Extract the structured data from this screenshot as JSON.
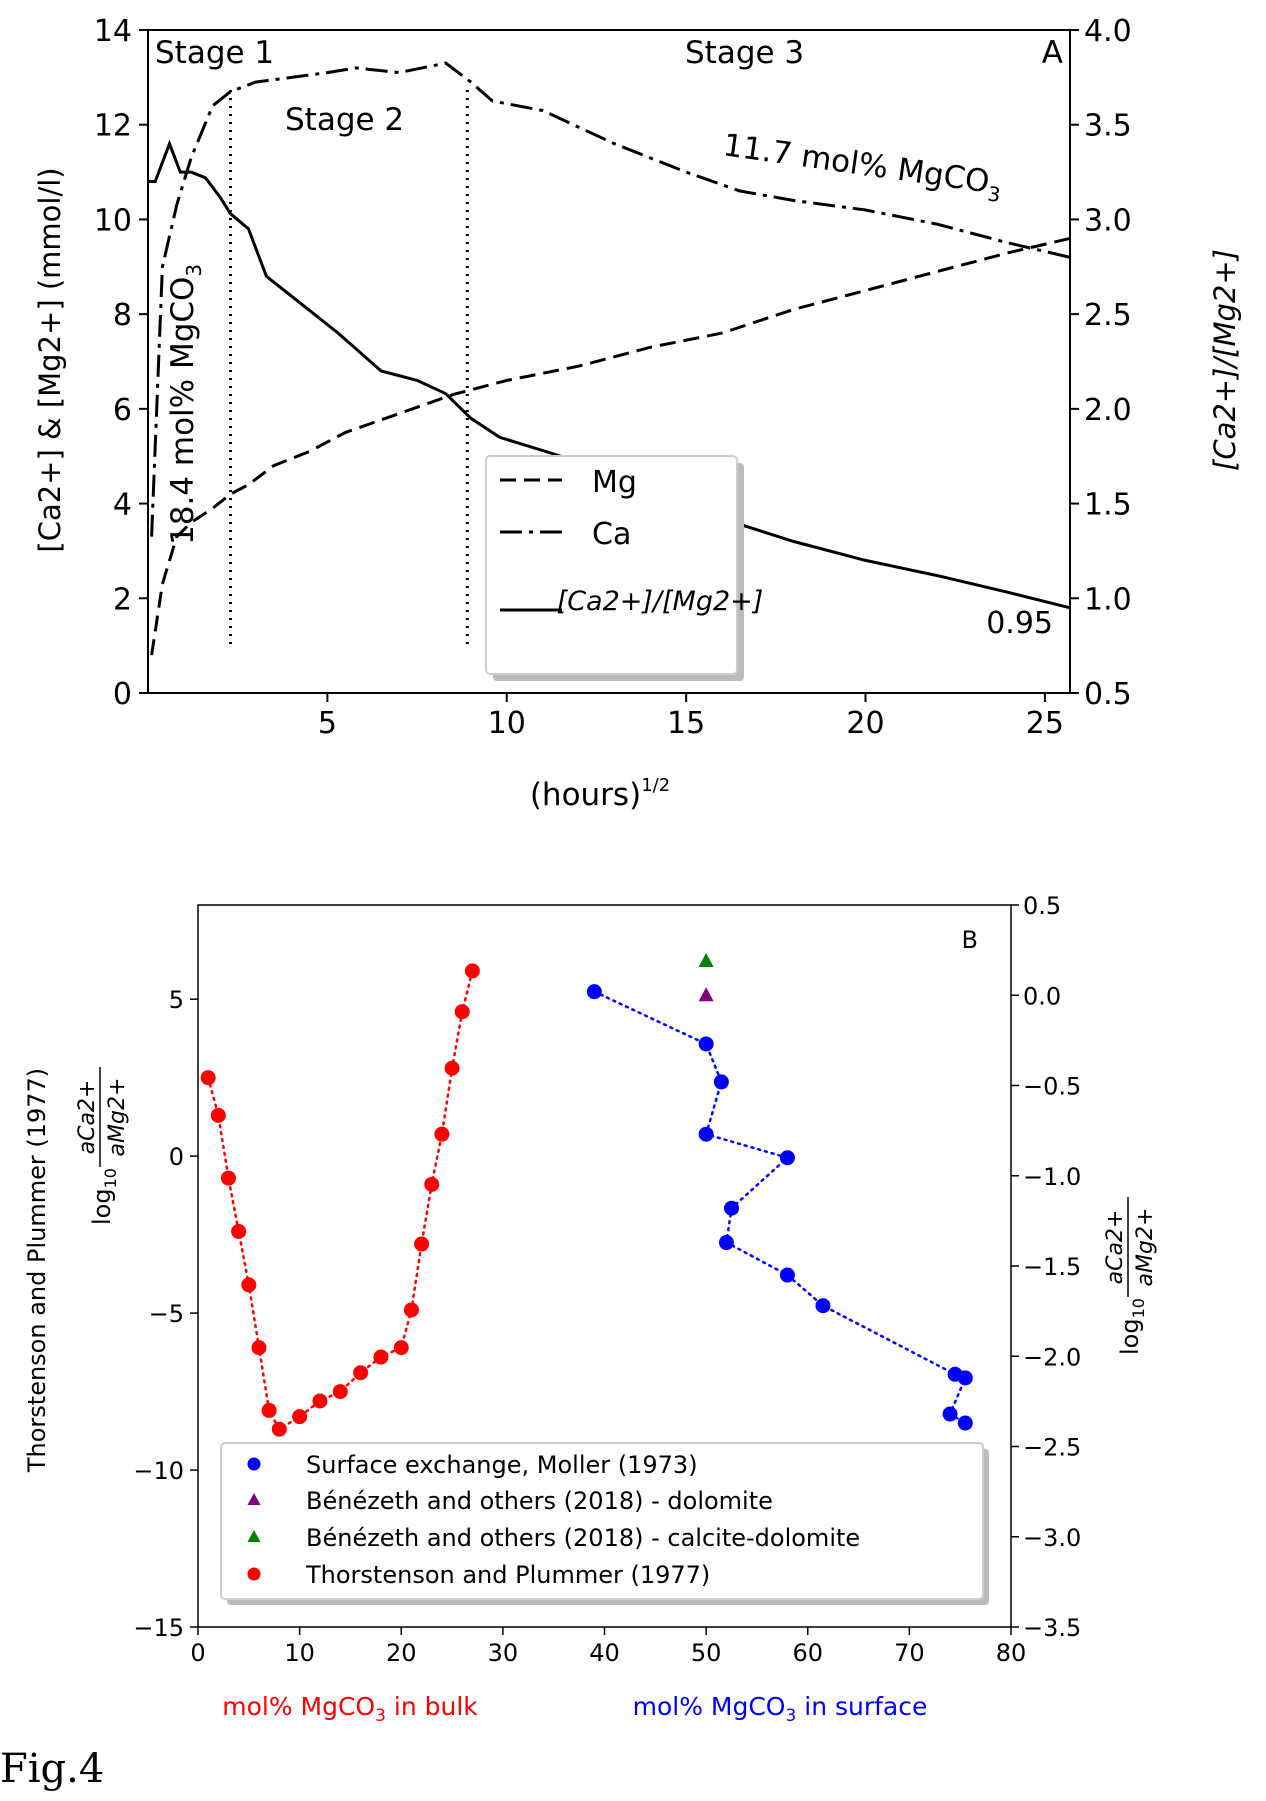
{
  "figure_label": "Fig.4",
  "chart_data": [
    {
      "panel": "A",
      "type": "line",
      "panel_label": "A",
      "xlabel_base": "(hours)",
      "xlabel_exp": "1/2",
      "ylabel": "[Ca2+] & [Mg2+] (mmol/l)",
      "ylabel_right": "[Ca2+]/[Mg2+]",
      "xlim": [
        0,
        25.7
      ],
      "ylim": [
        0,
        14
      ],
      "ylim_right": [
        0.5,
        4.0
      ],
      "x_ticks": [
        5,
        10,
        15,
        20,
        25
      ],
      "y_ticks": [
        0,
        2,
        4,
        6,
        8,
        10,
        12,
        14
      ],
      "y_ticks_right": [
        "0.5",
        "1.0",
        "1.5",
        "2.0",
        "2.5",
        "3.0",
        "3.5",
        "4.0"
      ],
      "stage_lines": [
        2.3,
        8.9
      ],
      "stage_labels": [
        "Stage 1",
        "Stage 2",
        "Stage 3"
      ],
      "annotations": {
        "ca_final": "11.7 mol% MgCO",
        "ca_initial": "18.4 mol% MgCO",
        "subscript": "3",
        "ratio_final": "0.95"
      },
      "legend": {
        "placement": "center",
        "entries": [
          "Mg",
          "Ca",
          "[Ca2+]/[Mg2+]"
        ]
      },
      "series": [
        {
          "name": "Mg",
          "axis": "left",
          "style": "dashed",
          "x": [
            0.1,
            0.4,
            0.8,
            1.2,
            1.8,
            2.3,
            2.8,
            3.5,
            4.5,
            5.5,
            7,
            8.5,
            10,
            12,
            14,
            16,
            18,
            20,
            22,
            24,
            25.7
          ],
          "y": [
            0.8,
            2.3,
            3.3,
            3.6,
            3.9,
            4.2,
            4.4,
            4.8,
            5.1,
            5.5,
            5.9,
            6.3,
            6.6,
            6.9,
            7.3,
            7.6,
            8.1,
            8.5,
            8.9,
            9.3,
            9.6
          ]
        },
        {
          "name": "Ca",
          "axis": "left",
          "style": "dashdot",
          "x": [
            0.1,
            0.4,
            0.8,
            1.2,
            1.8,
            2.3,
            3,
            4,
            5,
            5.8,
            7,
            8.3,
            9,
            9.6,
            11,
            13,
            15,
            16.5,
            18,
            20,
            22,
            24,
            25.7
          ],
          "y": [
            3.3,
            9,
            10.3,
            11.3,
            12.4,
            12.7,
            12.9,
            13,
            13.1,
            13.2,
            13.1,
            13.3,
            12.9,
            12.5,
            12.3,
            11.6,
            11,
            10.6,
            10.4,
            10.2,
            9.9,
            9.5,
            9.2
          ]
        },
        {
          "name": "[Ca2+]/[Mg2+]",
          "axis": "right",
          "style": "solid",
          "x": [
            0,
            0.2,
            0.6,
            0.9,
            1.2,
            1.6,
            2,
            2.3,
            2.8,
            3.3,
            4.3,
            5.3,
            6.5,
            7.5,
            8.3,
            9,
            9.8,
            11,
            12,
            14,
            16,
            18,
            20,
            22,
            24,
            25.7
          ],
          "y": [
            3.2,
            3.2,
            3.4,
            3.25,
            3.25,
            3.22,
            3.12,
            3.03,
            2.95,
            2.7,
            2.55,
            2.4,
            2.2,
            2.15,
            2.08,
            1.95,
            1.85,
            1.78,
            1.72,
            1.55,
            1.42,
            1.3,
            1.2,
            1.12,
            1.03,
            0.95
          ]
        }
      ]
    },
    {
      "panel": "B",
      "type": "scatter",
      "panel_label": "B",
      "xlabel_red": "mol% MgCO",
      "xlabel_red_tail": " in bulk",
      "xlabel_blue": "mol% MgCO",
      "xlabel_blue_tail": " in surface",
      "subscript": "3",
      "ylabel": "Thorstenson and Plummer (1977)",
      "ylabel_log": "log",
      "ylabel_log_sub": "10",
      "ylabel_frac_num": "aCa2+",
      "ylabel_frac_den": "aMg2+",
      "xlim": [
        0,
        80
      ],
      "ylim": [
        -15,
        8
      ],
      "ylim_right": [
        -3.5,
        0.5
      ],
      "x_ticks": [
        0,
        10,
        20,
        30,
        40,
        50,
        60,
        70,
        80
      ],
      "y_ticks": [
        -15,
        -10,
        -5,
        0,
        5
      ],
      "y_ticks_right": [
        "0.5",
        "0.0",
        "−0.5",
        "−1.0",
        "−1.5",
        "−2.0",
        "−2.5",
        "−3.0",
        "−3.5"
      ],
      "legend": {
        "placement": "lower center"
      },
      "series": [
        {
          "name": "Surface exchange, Moller (1973)",
          "axis": "right",
          "color": "#0000ff",
          "marker": "circle",
          "linestyle": "dotted",
          "x": [
            39,
            50,
            51.5,
            50,
            58,
            52.5,
            52,
            58,
            61.5,
            74.5,
            75.5,
            74,
            75.5
          ],
          "y": [
            0.02,
            -0.27,
            -0.48,
            -0.77,
            -0.9,
            -1.18,
            -1.37,
            -1.55,
            -1.72,
            -2.1,
            -2.12,
            -2.32,
            -2.37
          ]
        },
        {
          "name": "Bénézeth and others (2018) - dolomite",
          "axis": "right",
          "color": "#800080",
          "marker": "triangle",
          "linestyle": "none",
          "x": [
            50
          ],
          "y": [
            0.0
          ]
        },
        {
          "name": "Bénézeth and others (2018) - calcite-dolomite",
          "axis": "right",
          "color": "#008000",
          "marker": "triangle",
          "linestyle": "none",
          "x": [
            50
          ],
          "y": [
            0.19
          ]
        },
        {
          "name": "Thorstenson and Plummer (1977)",
          "axis": "left",
          "color": "#ff0000",
          "marker": "circle",
          "linestyle": "dotted",
          "x": [
            1,
            2,
            3,
            4,
            5,
            6,
            7,
            8,
            10,
            12,
            14,
            16,
            18,
            20,
            21,
            22,
            23,
            24,
            25,
            26,
            27
          ],
          "y": [
            2.5,
            1.3,
            -0.7,
            -2.4,
            -4.1,
            -6.1,
            -8.1,
            -8.7,
            -8.3,
            -7.8,
            -7.5,
            -6.9,
            -6.4,
            -6.1,
            -4.9,
            -2.8,
            -0.9,
            0.7,
            2.8,
            4.6,
            5.9
          ]
        }
      ]
    }
  ]
}
